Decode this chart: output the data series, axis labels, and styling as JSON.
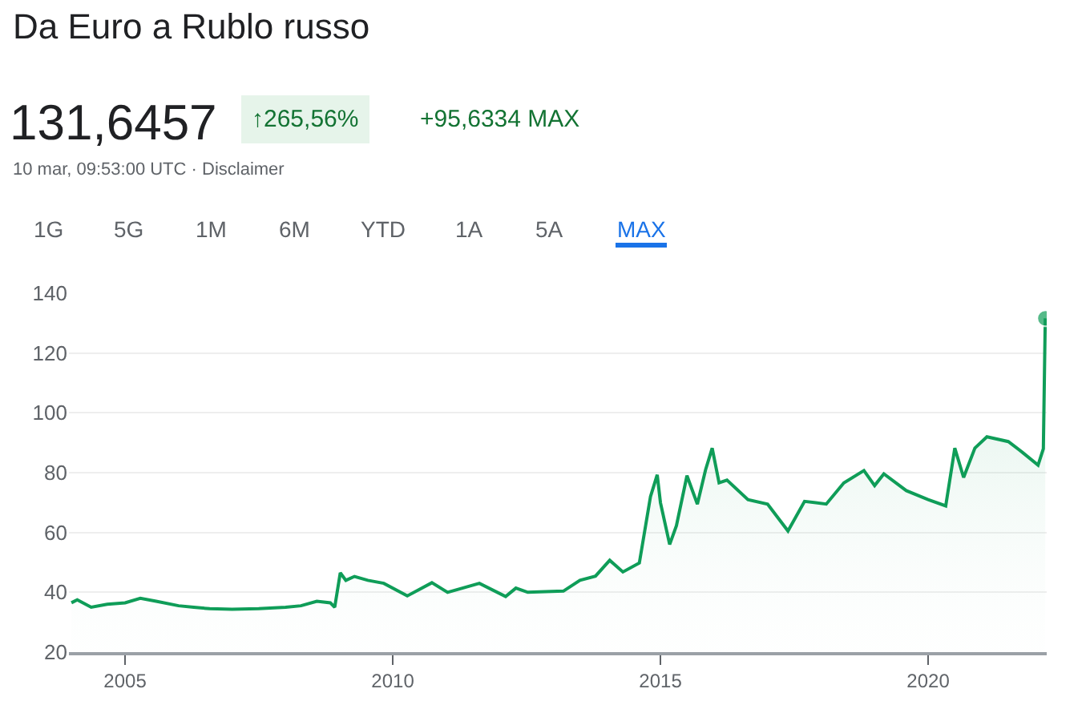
{
  "chart_data": {
    "type": "area",
    "title": "Da Euro a Rublo russo",
    "subtitle": "131,6457",
    "annotations": [
      "↑265,56%",
      "+95,6334 MAX",
      "10 mar, 09:53:00 UTC · Disclaimer",
      "1G",
      "5G",
      "1M",
      "6M",
      "YTD",
      "1A",
      "5A",
      "MAX"
    ],
    "x": [
      "2004-01-01",
      "2004-02-10",
      "2004-05-15",
      "2004-09-01",
      "2005-01-01",
      "2005-04-15",
      "2005-08-01",
      "2006-01-01",
      "2006-04-15",
      "2006-08-01",
      "2007-01-01",
      "2007-07-01",
      "2008-01-01",
      "2008-04-15",
      "2008-08-01",
      "2008-11-01",
      "2008-12-01",
      "2009-01-08",
      "2009-02-15",
      "2009-04-15",
      "2009-07-15",
      "2009-11-01",
      "2010-04-10",
      "2010-09-25",
      "2011-01-10",
      "2011-08-15",
      "2012-02-10",
      "2012-04-20",
      "2012-07-10",
      "2013-03-10",
      "2013-07-01",
      "2013-10-15",
      "2014-01-20",
      "2014-04-20",
      "2014-08-10",
      "2014-10-25",
      "2014-12-10",
      "2015-01-01",
      "2015-03-05",
      "2015-04-20",
      "2015-07-01",
      "2015-09-10",
      "2015-11-05",
      "2015-12-20",
      "2016-02-05",
      "2016-03-30",
      "2016-08-20",
      "2017-01-01",
      "2017-05-20",
      "2017-09-10",
      "2018-02-05",
      "2018-06-05",
      "2018-10-20",
      "2019-01-01",
      "2019-03-05",
      "2019-08-05",
      "2020-01-01",
      "2020-04-30",
      "2020-07-01",
      "2020-08-30",
      "2020-11-15",
      "2021-02-05",
      "2021-07-01",
      "2021-10-05",
      "2022-01-20",
      "2022-02-25",
      "2022-03-10"
    ],
    "values": [
      36.5,
      37.5,
      35,
      36,
      36.5,
      38,
      37,
      35.5,
      35,
      34.5,
      34.3,
      34.5,
      35,
      35.5,
      37,
      36.5,
      35,
      46.5,
      44,
      45.3,
      44,
      43,
      38.8,
      43.2,
      40,
      43,
      38.6,
      41.4,
      40,
      40.4,
      44,
      45.4,
      50.7,
      46.8,
      49.8,
      72,
      79.3,
      70,
      56,
      62.3,
      79,
      69.5,
      81,
      88.2,
      76.6,
      77.5,
      71,
      69.5,
      60.5,
      70.4,
      69.5,
      76.6,
      80.7,
      75.7,
      79.6,
      74,
      71,
      68.9,
      88.2,
      78.4,
      88.2,
      92,
      90.4,
      86.8,
      82.5,
      88,
      131.6
    ],
    "color": "#0f9d58",
    "xlim": [
      "2003-12-15",
      "2022-03-20"
    ],
    "xticks": [
      {
        "value": "2005-01-01",
        "label": "2005"
      },
      {
        "value": "2010-01-01",
        "label": "2010"
      },
      {
        "value": "2015-01-01",
        "label": "2015"
      },
      {
        "value": "2020-01-01",
        "label": "2020"
      }
    ],
    "ylim": [
      20,
      140
    ],
    "yticks": [
      20,
      40,
      60,
      80,
      100,
      120,
      140
    ],
    "grid": "y",
    "legend": false
  }
}
